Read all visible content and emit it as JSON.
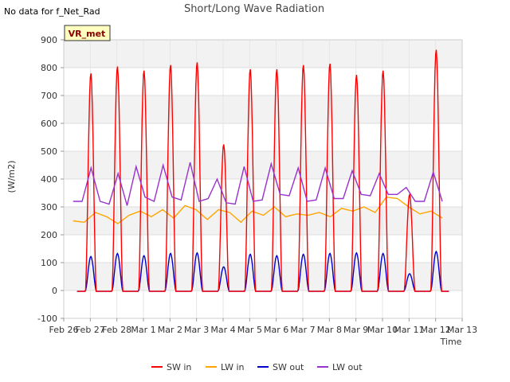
{
  "header": {
    "status_text": "No data for f_Net_Rad"
  },
  "chart_data": {
    "type": "line",
    "title": "Short/Long Wave Radiation",
    "xlabel": "Time",
    "ylabel": "(W/m2)",
    "ylim": [
      -100,
      900
    ],
    "xlim": [
      "2024-02-26",
      "2024-03-13"
    ],
    "y_ticks": [
      -100,
      0,
      100,
      200,
      300,
      400,
      500,
      600,
      700,
      800,
      900
    ],
    "x_tick_labels": [
      "Feb 26",
      "Feb 27",
      "Feb 28",
      "Mar 1",
      "Mar 2",
      "Mar 3",
      "Mar 4",
      "Mar 5",
      "Mar 6",
      "Mar 7",
      "Mar 8",
      "Mar 9",
      "Mar 10",
      "Mar 11",
      "Mar 12",
      "Mar 13"
    ],
    "grid": true,
    "legend_position": "bottom",
    "annotation": "VR_met",
    "series": [
      {
        "name": "SW in",
        "color": "#ff0000",
        "daily_peaks": [
          780,
          805,
          790,
          810,
          820,
          525,
          795,
          795,
          810,
          815,
          775,
          790,
          345,
          865
        ]
      },
      {
        "name": "LW in",
        "color": "#ffa500",
        "values": [
          250,
          245,
          280,
          265,
          240,
          270,
          285,
          265,
          290,
          260,
          305,
          290,
          255,
          290,
          280,
          245,
          285,
          270,
          300,
          265,
          275,
          270,
          280,
          265,
          295,
          285,
          300,
          280,
          335,
          330,
          300,
          275,
          285,
          260
        ]
      },
      {
        "name": "SW out",
        "color": "#0000cd",
        "daily_peaks": [
          122,
          133,
          125,
          133,
          135,
          85,
          130,
          125,
          130,
          133,
          135,
          133,
          60,
          140
        ]
      },
      {
        "name": "LW out",
        "color": "#9932cc",
        "values": [
          320,
          320,
          440,
          320,
          310,
          420,
          305,
          445,
          335,
          320,
          450,
          335,
          325,
          460,
          320,
          330,
          400,
          315,
          310,
          445,
          320,
          325,
          455,
          345,
          340,
          440,
          320,
          325,
          440,
          330,
          330,
          430,
          345,
          340,
          420,
          345,
          345,
          370,
          320,
          320,
          425,
          320
        ]
      }
    ]
  }
}
